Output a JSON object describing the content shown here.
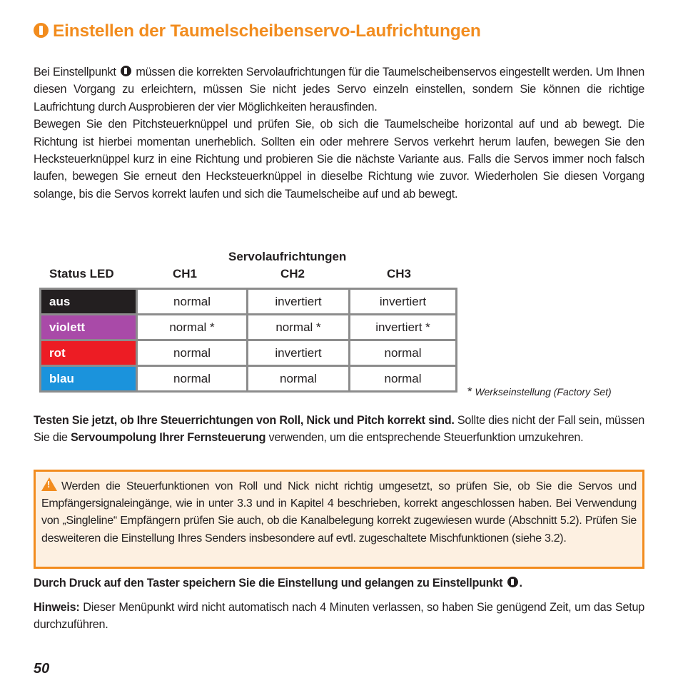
{
  "title": "Einstellen der  Taumelscheibenservo-Laufrichtungen",
  "intro": {
    "p1_a": "Bei Einstellpunkt",
    "p1_b": "müssen die korrekten Servolaufrichtungen für die Taumelscheibenservos eingestellt werden. Um Ihnen diesen Vorgang zu erleichtern, müssen Sie nicht jedes Servo einzeln einstellen, sondern Sie können die richtige Laufrichtung durch Ausprobieren der vier Möglichkeiten herausfinden.",
    "p2": "Bewegen Sie den Pitchsteuerknüppel und prüfen Sie, ob sich die Taumelscheibe horizontal auf und ab bewegt. Die Richtung ist hierbei momentan unerheblich. Sollten ein oder mehrere Servos verkehrt herum laufen, bewegen Sie den Hecksteuerknüppel kurz in eine Richtung und probieren Sie die nächste Variante aus.  Falls die Servos immer noch falsch laufen, bewegen Sie erneut den Hecksteuerknüppel in dieselbe Richtung wie zuvor. Wiederholen Sie diesen Vorgang solange, bis die Servos korrekt laufen und sich die Taumelscheibe auf und ab bewegt."
  },
  "table": {
    "group_header": "Servolaufrichtungen",
    "headers": [
      "Status LED",
      "CH1",
      "CH2",
      "CH3"
    ],
    "rows": [
      {
        "led": "aus",
        "color": "#231f20",
        "ch": [
          "normal",
          "invertiert",
          "invertiert"
        ]
      },
      {
        "led": "violett",
        "color": "#a94aa8",
        "ch": [
          "normal *",
          "normal *",
          "invertiert *"
        ]
      },
      {
        "led": "rot",
        "color": "#ed1c24",
        "ch": [
          "normal",
          "invertiert",
          "normal"
        ]
      },
      {
        "led": "blau",
        "color": "#1b93dc",
        "ch": [
          "normal",
          "normal",
          "normal"
        ]
      }
    ],
    "footnote_star": "*",
    "footnote": "Werkseinstellung (Factory Set)"
  },
  "test": {
    "bold1": "Testen Sie jetzt, ob Ihre Steuerrichtungen von Roll, Nick und Pitch korrekt sind.",
    "t1": " Sollte dies nicht der Fall sein, müssen Sie die ",
    "bold2": "Servoumpolung Ihrer Fernsteuerung",
    "t2": " verwenden, um die entsprechende Steuerfunktion umzukehren."
  },
  "warning": "Werden die Steuerfunktionen von Roll und Nick nicht richtig umgesetzt, so prüfen Sie, ob Sie die Servos und Empfängersignaleingänge, wie in unter 3.3 und in Kapitel 4 beschrieben, korrekt angeschlossen haben. Bei Verwendung von „Singleline“ Empfängern prüfen Sie auch, ob die Kanalbelegung korrekt zugewiesen wurde (Abschnitt 5.2). Prüfen Sie desweiteren die Einstellung Ihres Senders insbesondere auf evtl. zugeschaltete Mischfunktionen (siehe 3.2).",
  "save": {
    "text": "Durch Druck auf den Taster speichern Sie die Einstellung und gelangen zu Einstellpunkt",
    "end": "."
  },
  "note": {
    "label": "Hinweis:",
    "text": " Dieser Menüpunkt wird nicht automatisch nach 4 Minuten verlassen, so haben Sie genügend Zeit, um das Setup durchzuführen."
  },
  "page_number": "50",
  "colors": {
    "accent": "#f28c1e",
    "warning_bg": "#fdf0e1"
  }
}
